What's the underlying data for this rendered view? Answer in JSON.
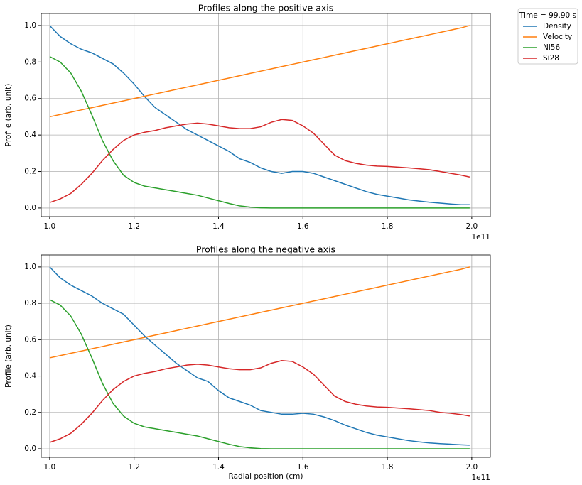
{
  "chart_data": [
    {
      "type": "line",
      "title": "Profiles along the positive axis",
      "y_label": "Profile (arb. unit)",
      "x_offset_label": "1e11",
      "legend_title": "Time = 99.90 s",
      "legend": "outside upper right",
      "grid": true,
      "xlim": [
        0.98,
        2.044
      ],
      "ylim": [
        -0.047,
        1.066
      ],
      "xticks": [
        {
          "value": 1.0,
          "label": "1.0"
        },
        {
          "value": 1.2,
          "label": "1.2"
        },
        {
          "value": 1.4,
          "label": "1.4"
        },
        {
          "value": 1.6,
          "label": "1.6"
        },
        {
          "value": 1.8,
          "label": "1.8"
        },
        {
          "value": 2.0,
          "label": "2.0"
        }
      ],
      "yticks": [
        {
          "value": 0.0,
          "label": "0.0"
        },
        {
          "value": 0.2,
          "label": "0.2"
        },
        {
          "value": 0.4,
          "label": "0.4"
        },
        {
          "value": 0.6,
          "label": "0.6"
        },
        {
          "value": 0.8,
          "label": "0.8"
        },
        {
          "value": 1.0,
          "label": "1.0"
        }
      ],
      "x": [
        1.0,
        1.025,
        1.05,
        1.075,
        1.1,
        1.125,
        1.15,
        1.175,
        1.2,
        1.225,
        1.25,
        1.275,
        1.3,
        1.325,
        1.35,
        1.375,
        1.4,
        1.425,
        1.45,
        1.475,
        1.5,
        1.525,
        1.55,
        1.575,
        1.6,
        1.625,
        1.65,
        1.675,
        1.7,
        1.725,
        1.75,
        1.775,
        1.8,
        1.825,
        1.85,
        1.875,
        1.9,
        1.925,
        1.95,
        1.975,
        1.995
      ],
      "series": [
        {
          "name": "Density",
          "color": "#1f77b4",
          "values": [
            1.0,
            0.94,
            0.9,
            0.87,
            0.85,
            0.82,
            0.79,
            0.74,
            0.68,
            0.61,
            0.55,
            0.51,
            0.47,
            0.43,
            0.4,
            0.37,
            0.34,
            0.31,
            0.27,
            0.25,
            0.22,
            0.2,
            0.19,
            0.2,
            0.2,
            0.19,
            0.17,
            0.15,
            0.13,
            0.11,
            0.09,
            0.075,
            0.065,
            0.055,
            0.045,
            0.038,
            0.032,
            0.027,
            0.022,
            0.018,
            0.018
          ]
        },
        {
          "name": "Velocity",
          "color": "#ff7f0e",
          "values": [
            0.5,
            0.5125,
            0.525,
            0.5375,
            0.55,
            0.5625,
            0.575,
            0.5875,
            0.6,
            0.6125,
            0.625,
            0.6375,
            0.65,
            0.6625,
            0.675,
            0.6875,
            0.7,
            0.7125,
            0.725,
            0.7375,
            0.75,
            0.7625,
            0.775,
            0.7875,
            0.8,
            0.8125,
            0.825,
            0.8375,
            0.85,
            0.8625,
            0.875,
            0.8875,
            0.9,
            0.9125,
            0.925,
            0.9375,
            0.95,
            0.9625,
            0.975,
            0.9875,
            1.0
          ]
        },
        {
          "name": "Ni56",
          "color": "#2ca02c",
          "values": [
            0.83,
            0.8,
            0.74,
            0.64,
            0.51,
            0.37,
            0.26,
            0.18,
            0.14,
            0.12,
            0.11,
            0.1,
            0.09,
            0.08,
            0.07,
            0.055,
            0.04,
            0.025,
            0.012,
            0.005,
            0.001,
            0,
            0,
            0,
            0,
            0,
            0,
            0,
            0,
            0,
            0,
            0,
            0,
            0,
            0,
            0,
            0,
            0,
            0,
            0,
            0
          ]
        },
        {
          "name": "Si28",
          "color": "#d62728",
          "values": [
            0.03,
            0.05,
            0.08,
            0.13,
            0.19,
            0.26,
            0.32,
            0.37,
            0.4,
            0.415,
            0.425,
            0.44,
            0.45,
            0.46,
            0.465,
            0.46,
            0.45,
            0.44,
            0.435,
            0.435,
            0.445,
            0.47,
            0.485,
            0.48,
            0.45,
            0.41,
            0.35,
            0.29,
            0.26,
            0.245,
            0.235,
            0.23,
            0.228,
            0.224,
            0.22,
            0.215,
            0.21,
            0.2,
            0.19,
            0.18,
            0.17
          ]
        }
      ]
    },
    {
      "type": "line",
      "title": "Profiles along the negative axis",
      "x_label": "Radial position (cm)",
      "y_label": "Profile (arb. unit)",
      "x_offset_label": "1e11",
      "grid": true,
      "xlim": [
        0.98,
        2.044
      ],
      "ylim": [
        -0.047,
        1.066
      ],
      "xticks": [
        {
          "value": 1.0,
          "label": "1.0"
        },
        {
          "value": 1.2,
          "label": "1.2"
        },
        {
          "value": 1.4,
          "label": "1.4"
        },
        {
          "value": 1.6,
          "label": "1.6"
        },
        {
          "value": 1.8,
          "label": "1.8"
        },
        {
          "value": 2.0,
          "label": "2.0"
        }
      ],
      "yticks": [
        {
          "value": 0.0,
          "label": "0.0"
        },
        {
          "value": 0.2,
          "label": "0.2"
        },
        {
          "value": 0.4,
          "label": "0.4"
        },
        {
          "value": 0.6,
          "label": "0.6"
        },
        {
          "value": 0.8,
          "label": "0.8"
        },
        {
          "value": 1.0,
          "label": "1.0"
        }
      ],
      "x": [
        1.0,
        1.025,
        1.05,
        1.075,
        1.1,
        1.125,
        1.15,
        1.175,
        1.2,
        1.225,
        1.25,
        1.275,
        1.3,
        1.325,
        1.35,
        1.375,
        1.4,
        1.425,
        1.45,
        1.475,
        1.5,
        1.525,
        1.55,
        1.575,
        1.6,
        1.625,
        1.65,
        1.675,
        1.7,
        1.725,
        1.75,
        1.775,
        1.8,
        1.825,
        1.85,
        1.875,
        1.9,
        1.925,
        1.95,
        1.975,
        1.995
      ],
      "series": [
        {
          "color": "#1f77b4",
          "values": [
            1.0,
            0.94,
            0.9,
            0.87,
            0.84,
            0.8,
            0.77,
            0.74,
            0.68,
            0.62,
            0.57,
            0.52,
            0.47,
            0.43,
            0.39,
            0.37,
            0.32,
            0.28,
            0.26,
            0.24,
            0.21,
            0.2,
            0.19,
            0.19,
            0.195,
            0.19,
            0.175,
            0.155,
            0.13,
            0.11,
            0.09,
            0.075,
            0.065,
            0.055,
            0.045,
            0.038,
            0.032,
            0.028,
            0.025,
            0.022,
            0.02
          ]
        },
        {
          "color": "#ff7f0e",
          "values": [
            0.5,
            0.5125,
            0.525,
            0.5375,
            0.55,
            0.5625,
            0.575,
            0.5875,
            0.6,
            0.6125,
            0.625,
            0.6375,
            0.65,
            0.6625,
            0.675,
            0.6875,
            0.7,
            0.7125,
            0.725,
            0.7375,
            0.75,
            0.7625,
            0.775,
            0.7875,
            0.8,
            0.8125,
            0.825,
            0.8375,
            0.85,
            0.8625,
            0.875,
            0.8875,
            0.9,
            0.9125,
            0.925,
            0.9375,
            0.95,
            0.9625,
            0.975,
            0.9875,
            1.0
          ]
        },
        {
          "color": "#2ca02c",
          "values": [
            0.82,
            0.79,
            0.73,
            0.63,
            0.5,
            0.36,
            0.25,
            0.18,
            0.14,
            0.12,
            0.11,
            0.1,
            0.09,
            0.08,
            0.07,
            0.055,
            0.04,
            0.025,
            0.012,
            0.005,
            0.001,
            0,
            0,
            0,
            0,
            0,
            0,
            0,
            0,
            0,
            0,
            0,
            0,
            0,
            0,
            0,
            0,
            0,
            0,
            0,
            0
          ]
        },
        {
          "color": "#d62728",
          "values": [
            0.035,
            0.055,
            0.085,
            0.135,
            0.195,
            0.265,
            0.325,
            0.37,
            0.4,
            0.415,
            0.425,
            0.44,
            0.45,
            0.46,
            0.465,
            0.46,
            0.45,
            0.44,
            0.435,
            0.435,
            0.445,
            0.47,
            0.485,
            0.48,
            0.45,
            0.41,
            0.35,
            0.29,
            0.26,
            0.245,
            0.235,
            0.23,
            0.228,
            0.224,
            0.22,
            0.215,
            0.21,
            0.2,
            0.195,
            0.188,
            0.18
          ]
        }
      ]
    }
  ]
}
